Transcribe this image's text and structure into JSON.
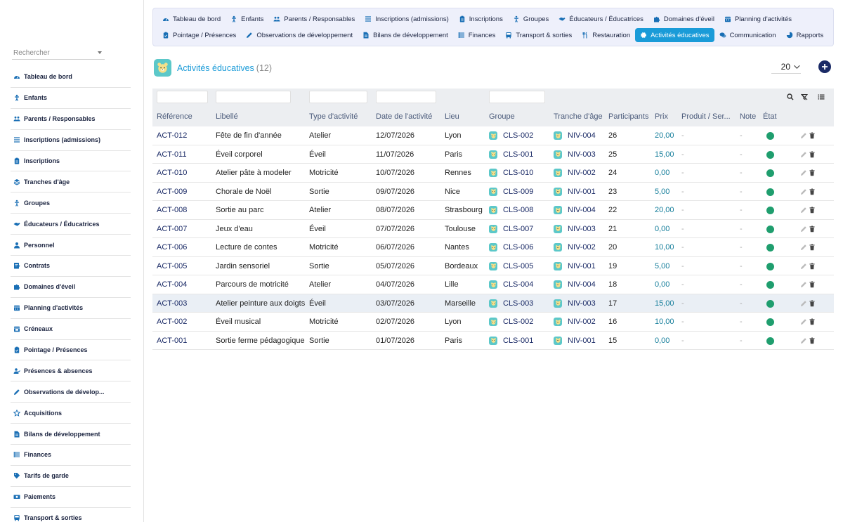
{
  "sidebar": {
    "search_placeholder": "Rechercher",
    "items": [
      {
        "label": "Tableau de bord",
        "icon": "gauge-icon"
      },
      {
        "label": "Enfants",
        "icon": "child-icon"
      },
      {
        "label": "Parents / Responsables",
        "icon": "users-icon"
      },
      {
        "label": "Inscriptions (admissions)",
        "icon": "list-icon"
      },
      {
        "label": "Inscriptions",
        "icon": "clipboard-icon"
      },
      {
        "label": "Tranches d'âge",
        "icon": "layers-icon"
      },
      {
        "label": "Groupes",
        "icon": "group-icon"
      },
      {
        "label": "Éducateurs / Éducatrices",
        "icon": "handshake-icon"
      },
      {
        "label": "Personnel",
        "icon": "person-icon"
      },
      {
        "label": "Contrats",
        "icon": "contract-icon"
      },
      {
        "label": "Domaines d'éveil",
        "icon": "puzzle-icon"
      },
      {
        "label": "Planning d'activités",
        "icon": "calendar-icon"
      },
      {
        "label": "Créneaux",
        "icon": "calendar-clock-icon"
      },
      {
        "label": "Pointage / Présences",
        "icon": "clipboard-check-icon"
      },
      {
        "label": "Présences & absences",
        "icon": "user-check-icon"
      },
      {
        "label": "Observations de dévelop...",
        "icon": "pencil-icon"
      },
      {
        "label": "Acquisitions",
        "icon": "star-icon"
      },
      {
        "label": "Bilans de développement",
        "icon": "report-icon"
      },
      {
        "label": "Finances",
        "icon": "finance-icon"
      },
      {
        "label": "Tarifs de garde",
        "icon": "tag-icon"
      },
      {
        "label": "Paiements",
        "icon": "money-icon"
      },
      {
        "label": "Transport & sorties",
        "icon": "bus-icon"
      }
    ]
  },
  "topnav": {
    "row1": [
      {
        "label": "Tableau de bord",
        "icon": "gauge-icon"
      },
      {
        "label": "Enfants",
        "icon": "child-icon"
      },
      {
        "label": "Parents / Responsables",
        "icon": "users-icon"
      },
      {
        "label": "Inscriptions (admissions)",
        "icon": "list-icon"
      },
      {
        "label": "Inscriptions",
        "icon": "clipboard-icon"
      },
      {
        "label": "Groupes",
        "icon": "group-icon"
      },
      {
        "label": "Éducateurs / Éducatrices",
        "icon": "handshake-icon"
      },
      {
        "label": "Domaines d'éveil",
        "icon": "puzzle-icon"
      },
      {
        "label": "Planning d'activités",
        "icon": "calendar-icon"
      }
    ],
    "row2": [
      {
        "label": "Pointage / Présences",
        "icon": "clipboard-check-icon"
      },
      {
        "label": "Observations de développement",
        "icon": "pencil-icon"
      },
      {
        "label": "Bilans de développement",
        "icon": "report-icon"
      },
      {
        "label": "Finances",
        "icon": "finance-icon"
      },
      {
        "label": "Transport & sorties",
        "icon": "bus-icon"
      },
      {
        "label": "Restauration",
        "icon": "cutlery-icon"
      },
      {
        "label": "Activités éducatives",
        "icon": "gear-icon",
        "active": true
      },
      {
        "label": "Communication",
        "icon": "chat-icon"
      },
      {
        "label": "Rapports",
        "icon": "chart-icon"
      }
    ]
  },
  "page": {
    "title": "Activités éducatives",
    "count": "(12)",
    "page_size": "20",
    "accent": "#1a9bd8",
    "status_color": "#1f9e6e"
  },
  "table": {
    "headers": [
      "Référence",
      "Libellé",
      "Type d'activité",
      "Date de l'activité",
      "Lieu",
      "Groupe",
      "Tranche d'âge",
      "Participants",
      "Prix",
      "Produit / Ser...",
      "Note",
      "État"
    ],
    "rows": [
      {
        "ref": "ACT-012",
        "label": "Fête de fin d'année",
        "type": "Atelier",
        "date": "12/07/2026",
        "place": "Lyon",
        "group": "CLS-002",
        "age": "NIV-004",
        "participants": "26",
        "price": "20,00",
        "product": "-",
        "note": "-"
      },
      {
        "ref": "ACT-011",
        "label": "Éveil corporel",
        "type": "Éveil",
        "date": "11/07/2026",
        "place": "Paris",
        "group": "CLS-001",
        "age": "NIV-003",
        "participants": "25",
        "price": "15,00",
        "product": "-",
        "note": "-"
      },
      {
        "ref": "ACT-010",
        "label": "Atelier pâte à modeler",
        "type": "Motricité",
        "date": "10/07/2026",
        "place": "Rennes",
        "group": "CLS-010",
        "age": "NIV-002",
        "participants": "24",
        "price": "0,00",
        "product": "-",
        "note": "-"
      },
      {
        "ref": "ACT-009",
        "label": "Chorale de Noël",
        "type": "Sortie",
        "date": "09/07/2026",
        "place": "Nice",
        "group": "CLS-009",
        "age": "NIV-001",
        "participants": "23",
        "price": "5,00",
        "product": "-",
        "note": "-"
      },
      {
        "ref": "ACT-008",
        "label": "Sortie au parc",
        "type": "Atelier",
        "date": "08/07/2026",
        "place": "Strasbourg",
        "group": "CLS-008",
        "age": "NIV-004",
        "participants": "22",
        "price": "20,00",
        "product": "-",
        "note": "-"
      },
      {
        "ref": "ACT-007",
        "label": "Jeux d'eau",
        "type": "Éveil",
        "date": "07/07/2026",
        "place": "Toulouse",
        "group": "CLS-007",
        "age": "NIV-003",
        "participants": "21",
        "price": "0,00",
        "product": "-",
        "note": "-"
      },
      {
        "ref": "ACT-006",
        "label": "Lecture de contes",
        "type": "Motricité",
        "date": "06/07/2026",
        "place": "Nantes",
        "group": "CLS-006",
        "age": "NIV-002",
        "participants": "20",
        "price": "10,00",
        "product": "-",
        "note": "-"
      },
      {
        "ref": "ACT-005",
        "label": "Jardin sensoriel",
        "type": "Sortie",
        "date": "05/07/2026",
        "place": "Bordeaux",
        "group": "CLS-005",
        "age": "NIV-001",
        "participants": "19",
        "price": "5,00",
        "product": "-",
        "note": "-"
      },
      {
        "ref": "ACT-004",
        "label": "Parcours de motricité",
        "type": "Atelier",
        "date": "04/07/2026",
        "place": "Lille",
        "group": "CLS-004",
        "age": "NIV-004",
        "participants": "18",
        "price": "0,00",
        "product": "-",
        "note": "-"
      },
      {
        "ref": "ACT-003",
        "label": "Atelier peinture aux doigts",
        "type": "Éveil",
        "date": "03/07/2026",
        "place": "Marseille",
        "group": "CLS-003",
        "age": "NIV-003",
        "participants": "17",
        "price": "15,00",
        "product": "-",
        "note": "-",
        "highlight": true
      },
      {
        "ref": "ACT-002",
        "label": "Éveil musical",
        "type": "Motricité",
        "date": "02/07/2026",
        "place": "Lyon",
        "group": "CLS-002",
        "age": "NIV-002",
        "participants": "16",
        "price": "10,00",
        "product": "-",
        "note": "-"
      },
      {
        "ref": "ACT-001",
        "label": "Sortie ferme pédagogique",
        "type": "Sortie",
        "date": "01/07/2026",
        "place": "Paris",
        "group": "CLS-001",
        "age": "NIV-001",
        "participants": "15",
        "price": "0,00",
        "product": "-",
        "note": "-"
      }
    ]
  }
}
